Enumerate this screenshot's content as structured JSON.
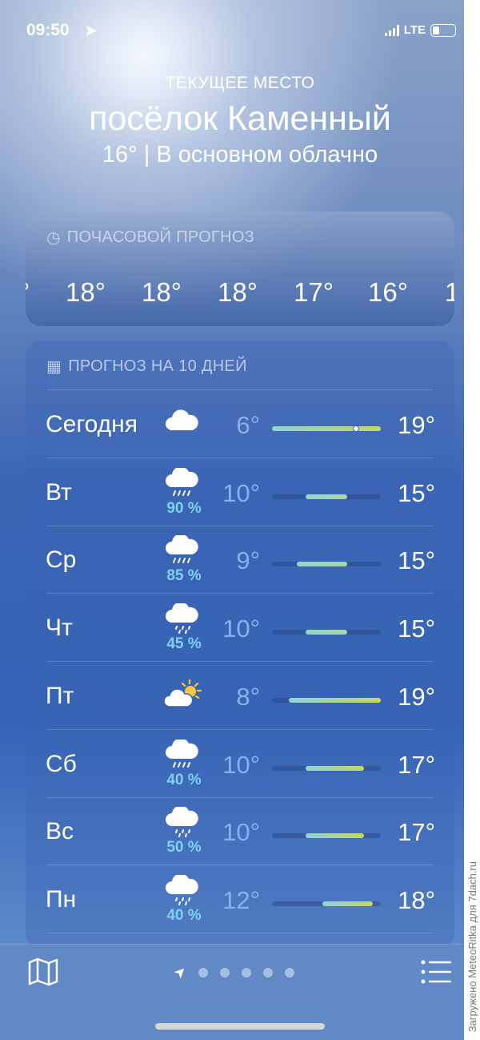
{
  "status_bar": {
    "time": "09:50",
    "network": "LTE",
    "battery_fraction": 0.25,
    "signal_bars": 4
  },
  "header": {
    "subtitle": "ТЕКУЩЕЕ МЕСТО",
    "city": "посёлок Каменный",
    "current_temp": "16°",
    "separator": "|",
    "condition": "В основном облачно"
  },
  "hourly": {
    "title": "ПОЧАСОВОЙ ПРОГНОЗ",
    "icon": "clock-icon",
    "temps": [
      "°",
      "18°",
      "18°",
      "18°",
      "17°",
      "16°",
      "1"
    ]
  },
  "daily": {
    "title": "ПРОГНОЗ НА 10 ДНЕЙ",
    "icon": "calendar-icon",
    "range_min": 6,
    "range_max": 19,
    "current_temp_value": 16,
    "days": [
      {
        "day": "Сегодня",
        "icon": "cloud",
        "precip": "",
        "low": "6°",
        "high": "19°",
        "low_v": 6,
        "high_v": 19
      },
      {
        "day": "Вт",
        "icon": "cloud-rain",
        "precip": "90 %",
        "low": "10°",
        "high": "15°",
        "low_v": 10,
        "high_v": 15
      },
      {
        "day": "Ср",
        "icon": "cloud-rain",
        "precip": "85 %",
        "low": "9°",
        "high": "15°",
        "low_v": 9,
        "high_v": 15
      },
      {
        "day": "Чт",
        "icon": "cloud-drizzle",
        "precip": "45 %",
        "low": "10°",
        "high": "15°",
        "low_v": 10,
        "high_v": 15
      },
      {
        "day": "Пт",
        "icon": "cloud-sun",
        "precip": "",
        "low": "8°",
        "high": "19°",
        "low_v": 8,
        "high_v": 19
      },
      {
        "day": "Сб",
        "icon": "cloud-rain",
        "precip": "40 %",
        "low": "10°",
        "high": "17°",
        "low_v": 10,
        "high_v": 17
      },
      {
        "day": "Вс",
        "icon": "cloud-drizzle",
        "precip": "50 %",
        "low": "10°",
        "high": "17°",
        "low_v": 10,
        "high_v": 17
      },
      {
        "day": "Пн",
        "icon": "cloud-drizzle",
        "precip": "40 %",
        "low": "12°",
        "high": "18°",
        "low_v": 12,
        "high_v": 18
      }
    ]
  },
  "toolbar": {
    "map_icon": "map-icon",
    "list_icon": "list-icon",
    "pages": 5,
    "active_page": "current-location"
  },
  "watermark": "Загружено MeteoRitka для 7dach.ru"
}
